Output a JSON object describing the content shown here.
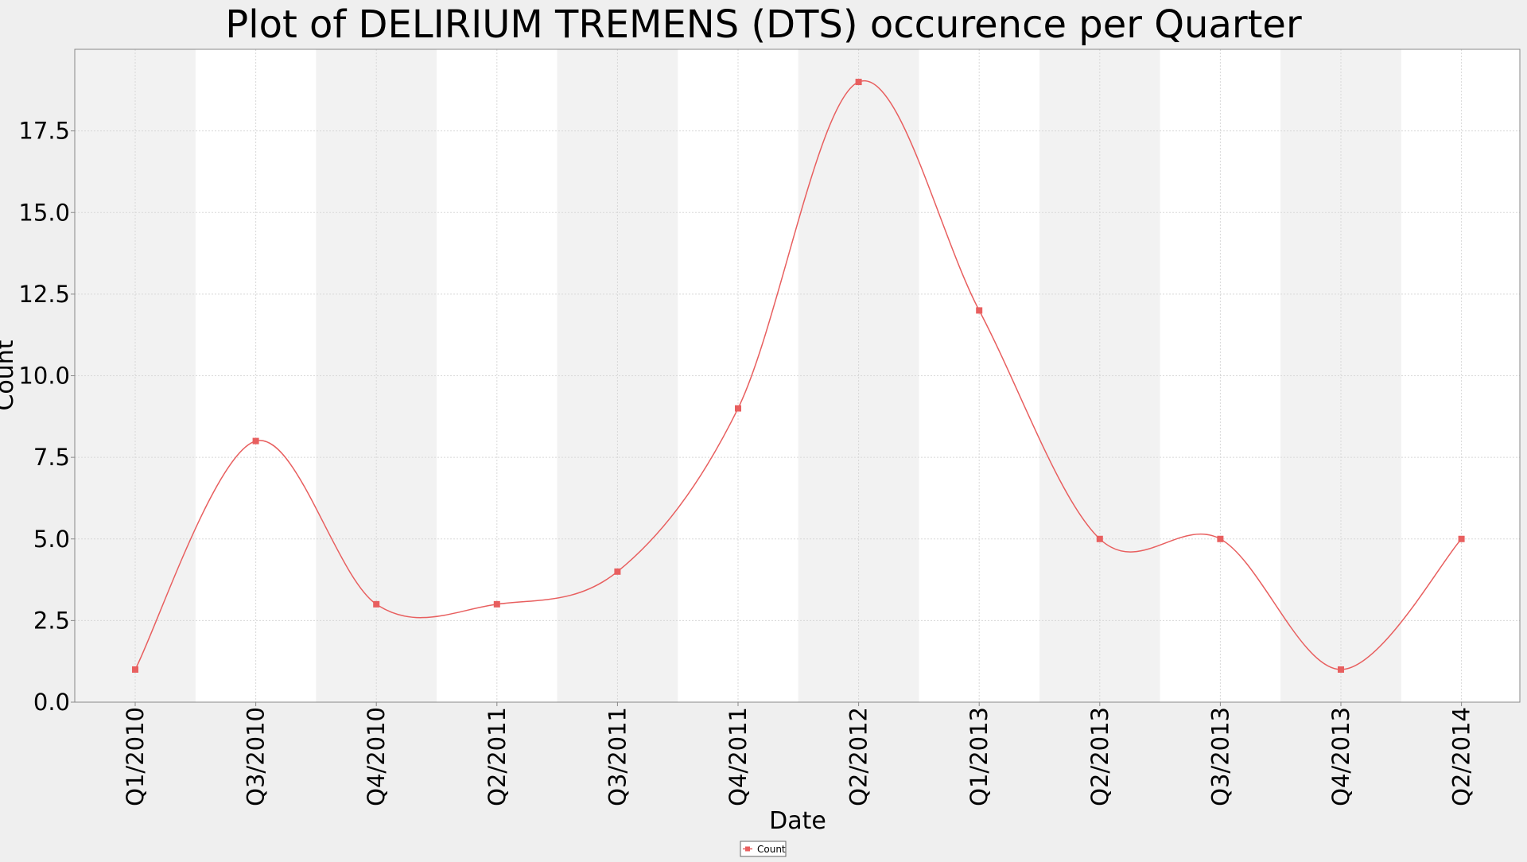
{
  "chart_data": {
    "type": "line",
    "title": "Plot of DELIRIUM TREMENS (DTS) occurence per Quarter",
    "xlabel": "Date",
    "ylabel": "Count",
    "categories": [
      "Q1/2010",
      "Q3/2010",
      "Q4/2010",
      "Q2/2011",
      "Q3/2011",
      "Q4/2011",
      "Q2/2012",
      "Q1/2013",
      "Q2/2013",
      "Q3/2013",
      "Q4/2013",
      "Q2/2014"
    ],
    "series": [
      {
        "name": "Count",
        "color": "#e85f5f",
        "values": [
          1,
          8,
          3,
          3,
          4,
          9,
          19,
          12,
          5,
          5,
          1,
          5
        ]
      }
    ],
    "ylim": [
      0,
      20
    ],
    "yticks": [
      0.0,
      2.5,
      5.0,
      7.5,
      10.0,
      12.5,
      15.0,
      17.5
    ],
    "ytick_labels": [
      "0.0",
      "2.5",
      "5.0",
      "7.5",
      "10.0",
      "12.5",
      "15.0",
      "17.5"
    ],
    "grid": true,
    "legend_position": "bottom-center",
    "band_colors": [
      "#f2f2f2",
      "#ffffff"
    ],
    "colors": {
      "background": "#efefef",
      "plot_border": "#888888",
      "grid": "#d8d8d8",
      "line": "#e85f5f"
    }
  }
}
